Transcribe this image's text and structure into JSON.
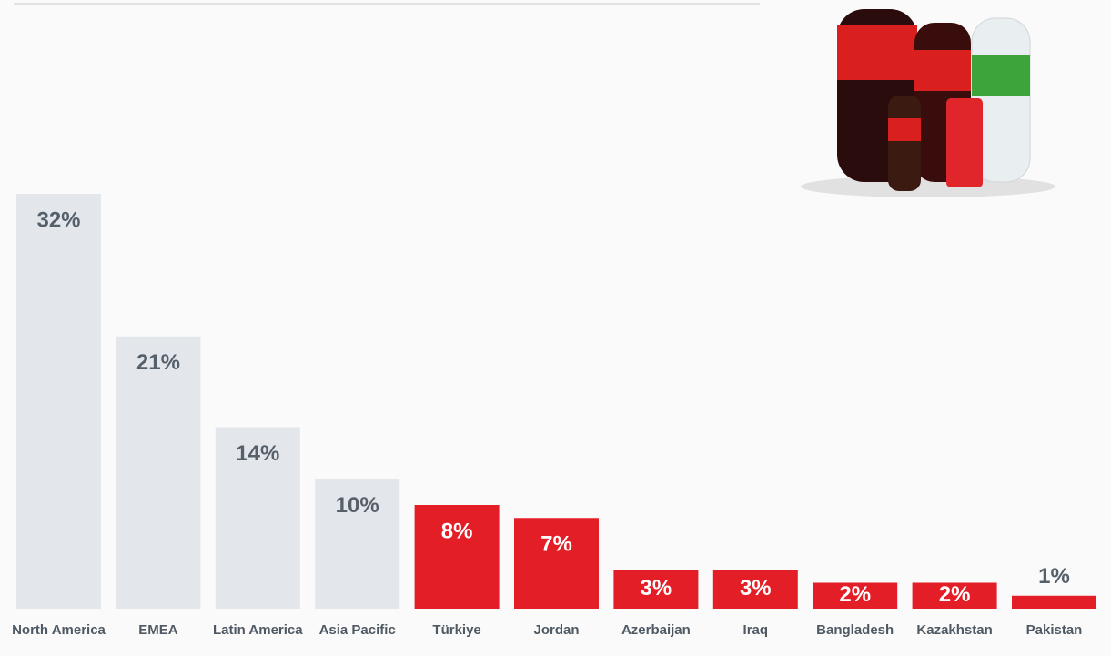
{
  "chart_data": {
    "type": "bar",
    "categories": [
      "North America",
      "EMEA",
      "Latin America",
      "Asia Pacific",
      "Türkiye",
      "Jordan",
      "Azerbaijan",
      "Iraq",
      "Bangladesh",
      "Kazakhstan",
      "Pakistan"
    ],
    "values": [
      32,
      21,
      14,
      10,
      8,
      7,
      3,
      3,
      2,
      2,
      1
    ],
    "value_labels": [
      "32%",
      "21%",
      "14%",
      "10%",
      "8%",
      "7%",
      "3%",
      "3%",
      "2%",
      "2%",
      "1%"
    ],
    "colors": [
      "#e3e6ea",
      "#e3e6ea",
      "#e3e6ea",
      "#e3e6ea",
      "#e41e26",
      "#e41e26",
      "#e41e26",
      "#e41e26",
      "#e41e26",
      "#e41e26",
      "#e41e26"
    ]
  }
}
